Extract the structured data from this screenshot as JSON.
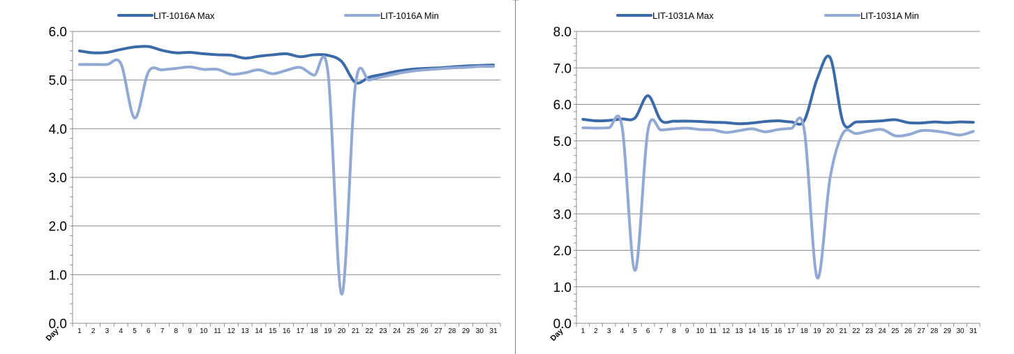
{
  "chart_data": [
    {
      "type": "line",
      "title": "",
      "xlabel": "Day",
      "ylabel": "",
      "ylim": [
        0,
        6
      ],
      "yticks": [
        "0.0",
        "1.0",
        "2.0",
        "3.0",
        "4.0",
        "5.0",
        "6.0"
      ],
      "ymajor_step": 1,
      "categories": [
        "1",
        "2",
        "3",
        "4",
        "5",
        "6",
        "7",
        "8",
        "9",
        "10",
        "11",
        "12",
        "13",
        "14",
        "15",
        "16",
        "17",
        "18",
        "19",
        "20",
        "21",
        "22",
        "23",
        "24",
        "25",
        "26",
        "27",
        "28",
        "29",
        "30",
        "31"
      ],
      "grid": true,
      "legend": "top",
      "series": [
        {
          "name": "LIT-1016A Max",
          "color": "#3c6aa8",
          "values": [
            5.6,
            5.56,
            5.57,
            5.63,
            5.68,
            5.69,
            5.61,
            5.56,
            5.57,
            5.54,
            5.52,
            5.51,
            5.45,
            5.49,
            5.52,
            5.54,
            5.48,
            5.52,
            5.51,
            5.38,
            4.95,
            5.06,
            5.12,
            5.18,
            5.22,
            5.24,
            5.25,
            5.27,
            5.29,
            5.3,
            5.31
          ]
        },
        {
          "name": "LIT-1016A Min",
          "color": "#91a9d3",
          "values": [
            5.32,
            5.32,
            5.32,
            5.34,
            4.22,
            5.17,
            5.21,
            5.24,
            5.27,
            5.22,
            5.22,
            5.12,
            5.15,
            5.21,
            5.13,
            5.2,
            5.26,
            5.1,
            5.17,
            0.6,
            4.9,
            5.0,
            5.07,
            5.13,
            5.18,
            5.21,
            5.23,
            5.25,
            5.26,
            5.28,
            5.28
          ]
        }
      ]
    },
    {
      "type": "line",
      "title": "",
      "xlabel": "Day",
      "ylabel": "",
      "ylim": [
        0,
        8
      ],
      "yticks": [
        "0.0",
        "1.0",
        "2.0",
        "3.0",
        "4.0",
        "5.0",
        "6.0",
        "7.0",
        "8.0"
      ],
      "ymajor_step": 1,
      "categories": [
        "1",
        "2",
        "3",
        "4",
        "5",
        "6",
        "7",
        "8",
        "9",
        "10",
        "11",
        "12",
        "13",
        "14",
        "15",
        "16",
        "17",
        "18",
        "19",
        "20",
        "21",
        "22",
        "23",
        "24",
        "25",
        "26",
        "27",
        "28",
        "29",
        "30",
        "31"
      ],
      "grid": true,
      "legend": "top",
      "series": [
        {
          "name": "LIT-1031A Max",
          "color": "#3c6aa8",
          "values": [
            5.59,
            5.55,
            5.56,
            5.6,
            5.63,
            6.24,
            5.56,
            5.54,
            5.54,
            5.53,
            5.51,
            5.5,
            5.47,
            5.49,
            5.53,
            5.55,
            5.52,
            5.55,
            6.7,
            7.28,
            5.5,
            5.52,
            5.53,
            5.55,
            5.58,
            5.5,
            5.49,
            5.52,
            5.5,
            5.52,
            5.51
          ]
        },
        {
          "name": "LIT-1031A Min",
          "color": "#91a9d3",
          "values": [
            5.36,
            5.35,
            5.36,
            5.4,
            1.45,
            5.3,
            5.3,
            5.33,
            5.35,
            5.31,
            5.3,
            5.23,
            5.28,
            5.33,
            5.25,
            5.31,
            5.34,
            5.32,
            1.25,
            4.0,
            5.22,
            5.2,
            5.27,
            5.31,
            5.14,
            5.17,
            5.28,
            5.27,
            5.22,
            5.16,
            5.26
          ]
        }
      ]
    }
  ]
}
